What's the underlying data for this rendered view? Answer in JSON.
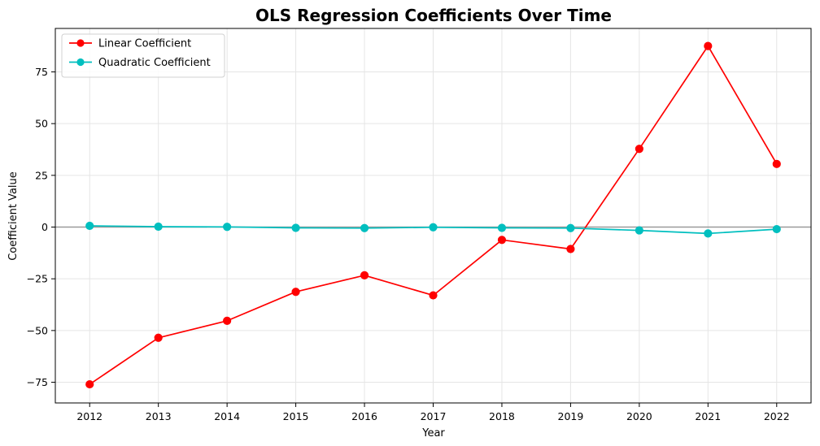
{
  "chart_data": {
    "type": "line",
    "title": "OLS Regression Coefficients Over Time",
    "xlabel": "Year",
    "ylabel": "Coefficient Value",
    "x": [
      2012,
      2013,
      2014,
      2015,
      2016,
      2017,
      2018,
      2019,
      2020,
      2021,
      2022
    ],
    "xlim": [
      2011.5,
      2022.5
    ],
    "ylim": [
      -85,
      96
    ],
    "yticks": [
      -75,
      -50,
      -25,
      0,
      25,
      50,
      75
    ],
    "ytick_labels": [
      "−75",
      "−50",
      "−25",
      "0",
      "25",
      "50",
      "75"
    ],
    "grid": true,
    "legend": "top-left",
    "zero_line": 0,
    "series": [
      {
        "name": "Linear Coefficient",
        "color": "#ff0000",
        "marker": "circle",
        "values": [
          -76.0,
          -53.5,
          -45.3,
          -31.3,
          -23.3,
          -33.0,
          -6.2,
          -10.6,
          37.8,
          87.5,
          30.5
        ]
      },
      {
        "name": "Quadratic Coefficient",
        "color": "#00bfbf",
        "marker": "circle",
        "values": [
          0.6,
          0.2,
          0.1,
          -0.4,
          -0.5,
          -0.1,
          -0.4,
          -0.5,
          -1.6,
          -3.1,
          -1.0
        ]
      }
    ]
  }
}
